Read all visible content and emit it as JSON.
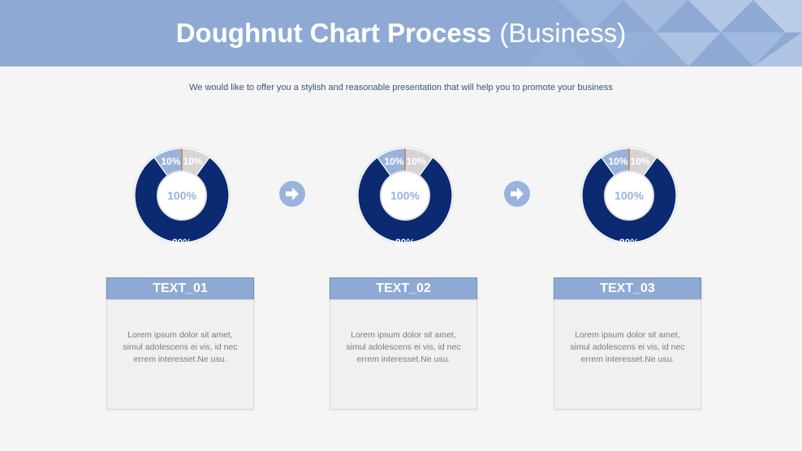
{
  "header": {
    "title_main": "Doughnut Chart Process",
    "title_sub": "(Business)"
  },
  "subtitle": "We would like to offer you a stylish and reasonable presentation that will help you to promote your business",
  "colors": {
    "header_bg": "#8eaad4",
    "dark_blue": "#0b2a72",
    "light_blue": "#99b3dc",
    "light_gray": "#d5d5d5",
    "divider": "#c07a50",
    "center_text": "#99b3dc"
  },
  "chart_data": [
    {
      "type": "pie",
      "center_label": "100%",
      "slices": [
        {
          "label": "10%",
          "value": 10,
          "color": "#d5d5d5"
        },
        {
          "label": "80%",
          "value": 80,
          "color": "#0b2a72"
        },
        {
          "label": "10%",
          "value": 10,
          "color": "#99b3dc"
        }
      ]
    },
    {
      "type": "pie",
      "center_label": "100%",
      "slices": [
        {
          "label": "10%",
          "value": 10,
          "color": "#d5d5d5"
        },
        {
          "label": "80%",
          "value": 80,
          "color": "#0b2a72"
        },
        {
          "label": "10%",
          "value": 10,
          "color": "#99b3dc"
        }
      ]
    },
    {
      "type": "pie",
      "center_label": "100%",
      "slices": [
        {
          "label": "10%",
          "value": 10,
          "color": "#d5d5d5"
        },
        {
          "label": "80%",
          "value": 80,
          "color": "#0b2a72"
        },
        {
          "label": "10%",
          "value": 10,
          "color": "#99b3dc"
        }
      ]
    }
  ],
  "arrows": [
    {
      "icon": "arrow-right-icon"
    },
    {
      "icon": "arrow-right-icon"
    }
  ],
  "cards": [
    {
      "title": "TEXT_01",
      "lines": [
        "Lorem ipsum dolor sit amet,",
        "simul adolescens ei vis, id nec",
        "errem interesset.Ne usu."
      ]
    },
    {
      "title": "TEXT_02",
      "lines": [
        "Lorem ipsum dolor sit amet,",
        "simul adolescens ei vis, id nec",
        "errem interesset.Ne usu."
      ]
    },
    {
      "title": "TEXT_03",
      "lines": [
        "Lorem ipsum dolor sit amet,",
        "simul adolescens ei vis, id nec",
        "errem interesset.Ne usu."
      ]
    }
  ]
}
